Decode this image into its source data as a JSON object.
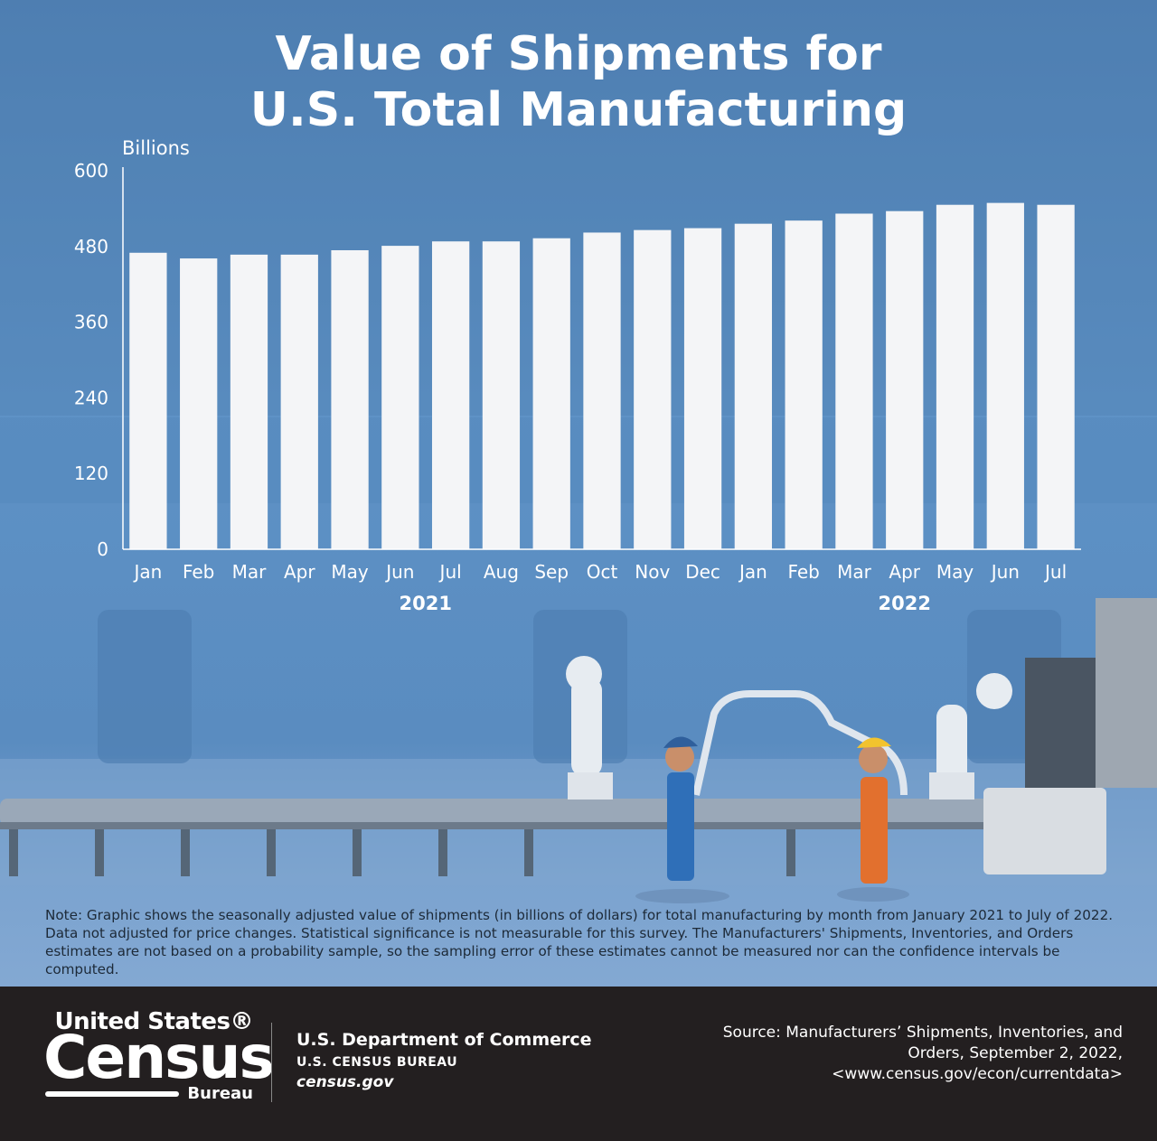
{
  "title_line1": "Value of Shipments for",
  "title_line2": "U.S. Total Manufacturing",
  "note": "Note: Graphic shows the seasonally adjusted value of shipments (in billions of dollars) for total manufacturing by month from January 2021 to July of 2022. Data not adjusted for price changes. Statistical significance is not measurable for this survey. The Manufacturers' Shipments, Inventories, and Orders estimates are not based on a probability sample, so the sampling error of these estimates cannot be measured nor can the confidence intervals be computed.",
  "footer": {
    "logo_top": "United States®",
    "logo_main": "Census",
    "logo_bottom": "Bureau",
    "dept": "U.S. Department of Commerce",
    "bureau": "U.S. CENSUS BUREAU",
    "site": "census.gov",
    "source_line1": "Source: Manufacturers’ Shipments, Inventories, and",
    "source_line2": "Orders, September 2, 2022,",
    "source_line3": "<www.census.gov/econ/currentdata>"
  },
  "colors": {
    "bar": "#f4f5f7",
    "text": "#ffffff",
    "footer_bg": "#231f20"
  },
  "chart_data": {
    "type": "bar",
    "ylabel": "Billions",
    "ylim": [
      0,
      600
    ],
    "yticks": [
      0,
      120,
      240,
      360,
      480,
      600
    ],
    "categories": [
      "Jan",
      "Feb",
      "Mar",
      "Apr",
      "May",
      "Jun",
      "Jul",
      "Aug",
      "Sep",
      "Oct",
      "Nov",
      "Dec",
      "Jan",
      "Feb",
      "Mar",
      "Apr",
      "May",
      "Jun",
      "Jul"
    ],
    "values": [
      470,
      461,
      467,
      467,
      474,
      481,
      488,
      488,
      493,
      502,
      506,
      509,
      516,
      521,
      532,
      536,
      546,
      549,
      546
    ],
    "year_groups": [
      {
        "label": "2021",
        "start": 0,
        "end": 11
      },
      {
        "label": "2022",
        "start": 12,
        "end": 18
      }
    ],
    "grid": false,
    "legend": "none"
  }
}
